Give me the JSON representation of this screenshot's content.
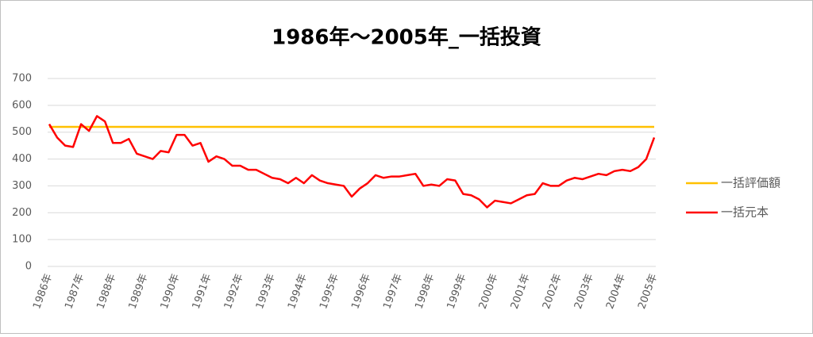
{
  "chart_data": {
    "type": "line",
    "title": "1986年～2005年_一括投資",
    "categories": [
      "1986年",
      null,
      null,
      null,
      "1987年",
      null,
      null,
      null,
      "1988年",
      null,
      null,
      null,
      "1989年",
      null,
      null,
      null,
      "1990年",
      null,
      null,
      null,
      "1991年",
      null,
      null,
      null,
      "1992年",
      null,
      null,
      null,
      "1993年",
      null,
      null,
      null,
      "1994年",
      null,
      null,
      null,
      "1995年",
      null,
      null,
      null,
      "1996年",
      null,
      null,
      null,
      "1997年",
      null,
      null,
      null,
      "1998年",
      null,
      null,
      null,
      "1999年",
      null,
      null,
      null,
      "2000年",
      null,
      null,
      null,
      "2001年",
      null,
      null,
      null,
      "2002年",
      null,
      null,
      null,
      "2003年",
      null,
      null,
      null,
      "2004年",
      null,
      null,
      null,
      "2005年"
    ],
    "series": [
      {
        "name": "一括評価額",
        "color": "#ffc000",
        "values": [
          520,
          520,
          520,
          520,
          520,
          520,
          520,
          520,
          520,
          520,
          520,
          520,
          520,
          520,
          520,
          520,
          520,
          520,
          520,
          520,
          520,
          520,
          520,
          520,
          520,
          520,
          520,
          520,
          520,
          520,
          520,
          520,
          520,
          520,
          520,
          520,
          520,
          520,
          520,
          520,
          520,
          520,
          520,
          520,
          520,
          520,
          520,
          520,
          520,
          520,
          520,
          520,
          520,
          520,
          520,
          520,
          520,
          520,
          520,
          520,
          520,
          520,
          520,
          520,
          520,
          520,
          520,
          520,
          520,
          520,
          520,
          520,
          520,
          520,
          520,
          520,
          520
        ]
      },
      {
        "name": "一括元本",
        "color": "#ff0000",
        "values": [
          530,
          480,
          450,
          445,
          530,
          505,
          560,
          540,
          460,
          460,
          475,
          420,
          410,
          400,
          430,
          425,
          490,
          490,
          450,
          460,
          390,
          410,
          400,
          375,
          375,
          360,
          360,
          345,
          330,
          325,
          310,
          330,
          310,
          340,
          320,
          310,
          305,
          300,
          260,
          290,
          310,
          340,
          330,
          335,
          335,
          340,
          345,
          300,
          305,
          300,
          325,
          320,
          270,
          265,
          250,
          220,
          245,
          240,
          235,
          250,
          265,
          270,
          310,
          300,
          300,
          320,
          330,
          325,
          335,
          345,
          340,
          355,
          360,
          355,
          370,
          400,
          480
        ]
      }
    ],
    "ylim": [
      0,
      700
    ],
    "yticks": [
      0,
      100,
      200,
      300,
      400,
      500,
      600,
      700
    ],
    "grid": true,
    "legend": "right"
  }
}
